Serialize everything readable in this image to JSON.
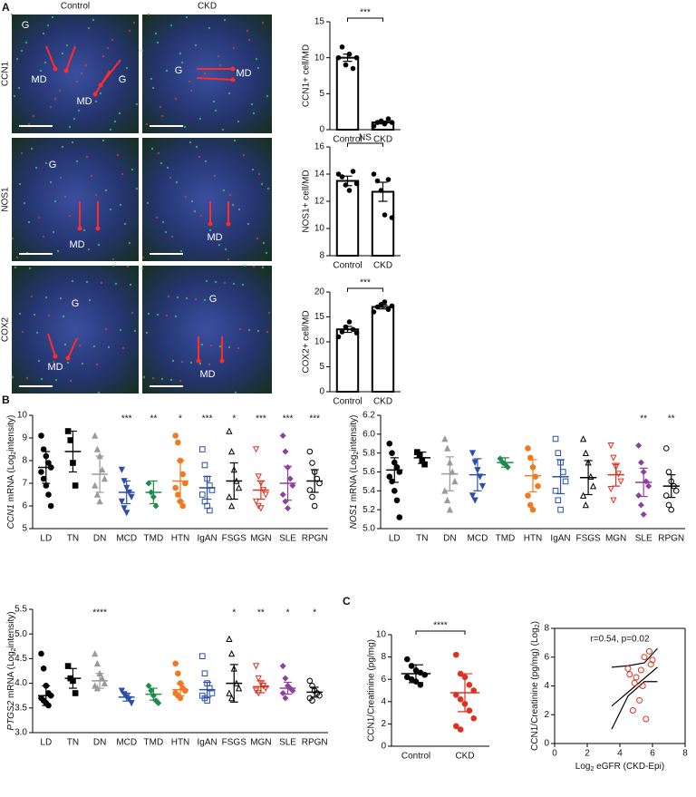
{
  "panel_labels": [
    "A",
    "B",
    "C"
  ],
  "micrographs": {
    "columns": [
      "Control",
      "CKD"
    ],
    "rows": [
      {
        "label": "CCN1",
        "labels": [
          [
            "G",
            "MD",
            "MD",
            "G"
          ],
          [
            "G",
            "MD"
          ]
        ]
      },
      {
        "label": "NOS1",
        "labels": [
          [
            "G",
            "MD"
          ],
          [
            "MD"
          ]
        ]
      },
      {
        "label": "COX2",
        "labels": [
          [
            "G",
            "MD"
          ],
          [
            "G",
            "MD"
          ]
        ]
      }
    ]
  },
  "chart_data": [
    {
      "type": "bar",
      "ylabel": "CCN1+ cell/MD",
      "categories": [
        "Control",
        "CKD"
      ],
      "values": [
        10,
        1
      ],
      "errors": [
        0.5,
        0.2
      ],
      "points": [
        [
          10,
          11.5,
          9,
          10.5,
          8.5,
          10
        ],
        [
          0.5,
          1,
          1.2,
          0.8,
          1.5,
          1
        ]
      ],
      "color": "#000000",
      "ylim": [
        0,
        15
      ],
      "yticks": [
        0,
        5,
        10,
        15
      ],
      "significance": "***"
    },
    {
      "type": "bar",
      "ylabel": "NOS1+ cell/MD",
      "categories": [
        "Control",
        "CKD"
      ],
      "values": [
        13.5,
        12.7
      ],
      "errors": [
        0.35,
        0.7
      ],
      "points": [
        [
          14,
          13.8,
          13.2,
          12.8,
          14.2,
          13.3
        ],
        [
          14,
          13.5,
          12.8,
          11,
          13.6,
          10.8
        ]
      ],
      "color": "#000000",
      "ylim": [
        8,
        16
      ],
      "yticks": [
        8,
        10,
        12,
        14,
        16
      ],
      "significance": "NS"
    },
    {
      "type": "bar",
      "ylabel": "COX2+ cell/MD",
      "categories": [
        "Control",
        "CKD"
      ],
      "values": [
        12.5,
        17
      ],
      "errors": [
        0.6,
        0.4
      ],
      "points": [
        [
          11,
          12,
          13,
          14,
          12.5,
          11.8
        ],
        [
          16,
          17,
          17.5,
          18,
          16.5,
          17.2
        ]
      ],
      "color": "#000000",
      "ylim": [
        0,
        20
      ],
      "yticks": [
        0,
        5,
        10,
        15,
        20
      ],
      "significance": "***"
    },
    {
      "type": "dotplot",
      "ylabel": [
        {
          "text": "CCN1",
          "italic": true
        },
        {
          "text": " mRNA (Log"
        },
        {
          "text": "2",
          "sub": true
        },
        {
          "text": "intensity)"
        }
      ],
      "categories": [
        "LD",
        "TN",
        "DN",
        "MCD",
        "TMD",
        "HTN",
        "IgAN",
        "FSGS",
        "MGN",
        "SLE",
        "RPGN"
      ],
      "colors": [
        "#000000",
        "#000000",
        "#9a9a9a",
        "#2a4fa8",
        "#1f8a4c",
        "#f07a22",
        "#2a4fa8",
        "#000000",
        "#e0301e",
        "#8e3fa0",
        "#000000"
      ],
      "markers": [
        "circle",
        "square",
        "triangle",
        "triangle-down",
        "diamond",
        "circle",
        "open-square",
        "open-triangle",
        "open-triangle-down",
        "diamond",
        "open-circle"
      ],
      "means": [
        7.7,
        8.4,
        7.4,
        6.6,
        6.6,
        7.1,
        6.8,
        7.1,
        6.7,
        7.0,
        7.1
      ],
      "errors": [
        0.7,
        0.9,
        0.8,
        0.5,
        0.5,
        0.9,
        0.5,
        0.8,
        0.4,
        0.75,
        0.5
      ],
      "points": [
        [
          9.1,
          8.5,
          8.2,
          7.9,
          7.7,
          7.5,
          7.2,
          6.9,
          6.5,
          6.0
        ],
        [
          9.3,
          8.9,
          7.9,
          6.9
        ],
        [
          9.1,
          8.5,
          8.2,
          7.6,
          7.2,
          6.9,
          6.5,
          6.2
        ],
        [
          7.6,
          7.1,
          6.8,
          6.6,
          6.4,
          6.2,
          5.9,
          5.7
        ],
        [
          7.0,
          6.6,
          6.4,
          6.0
        ],
        [
          9.1,
          8.8,
          8.0,
          7.4,
          7.0,
          6.8,
          6.5,
          6.2,
          6.0
        ],
        [
          8.5,
          7.8,
          7.2,
          6.9,
          6.7,
          6.5,
          6.2,
          6.0,
          5.8
        ],
        [
          9.3,
          8.4,
          7.6,
          7.1,
          6.8,
          6.4,
          6.0
        ],
        [
          8.5,
          7.3,
          7.0,
          6.7,
          6.5,
          6.2,
          6.0,
          5.9
        ],
        [
          9.1,
          8.4,
          7.7,
          7.2,
          6.9,
          6.5,
          6.2,
          5.9
        ],
        [
          8.4,
          7.9,
          7.5,
          7.2,
          7.0,
          6.7,
          6.4,
          6.0
        ]
      ],
      "significance": [
        null,
        null,
        null,
        "***",
        "**",
        "*",
        "***",
        "*",
        "***",
        "***",
        "***"
      ],
      "ylim": [
        5,
        10
      ],
      "yticks": [
        5,
        6,
        7,
        8,
        9,
        10
      ]
    },
    {
      "type": "dotplot",
      "ylabel": [
        {
          "text": "NOS1",
          "italic": true
        },
        {
          "text": " mRNA (Log"
        },
        {
          "text": "2",
          "sub": true
        },
        {
          "text": "intensity)"
        }
      ],
      "categories": [
        "LD",
        "TN",
        "DN",
        "MCD",
        "TMD",
        "HTN",
        "IgAN",
        "FSGS",
        "MGN",
        "SLE",
        "RPGN"
      ],
      "colors": [
        "#000000",
        "#000000",
        "#9a9a9a",
        "#2a4fa8",
        "#1f8a4c",
        "#f07a22",
        "#2a4fa8",
        "#000000",
        "#e0301e",
        "#8e3fa0",
        "#000000"
      ],
      "markers": [
        "circle",
        "square",
        "triangle",
        "triangle-down",
        "diamond",
        "circle",
        "open-square",
        "open-triangle",
        "open-triangle-down",
        "diamond",
        "open-circle"
      ],
      "means": [
        5.62,
        5.75,
        5.58,
        5.57,
        5.7,
        5.56,
        5.55,
        5.54,
        5.57,
        5.49,
        5.45
      ],
      "errors": [
        0.13,
        0.06,
        0.18,
        0.17,
        0.05,
        0.17,
        0.18,
        0.18,
        0.12,
        0.15,
        0.12
      ],
      "points": [
        [
          5.9,
          5.8,
          5.7,
          5.65,
          5.6,
          5.55,
          5.5,
          5.4,
          5.3,
          5.12
        ],
        [
          5.81,
          5.78,
          5.72,
          5.68
        ],
        [
          5.95,
          5.85,
          5.7,
          5.6,
          5.5,
          5.4,
          5.3,
          5.2
        ],
        [
          5.8,
          5.7,
          5.62,
          5.55,
          5.45,
          5.35,
          5.3
        ],
        [
          5.74,
          5.7,
          5.68,
          5.65
        ],
        [
          5.85,
          5.75,
          5.65,
          5.55,
          5.45,
          5.35,
          5.25,
          5.2
        ],
        [
          5.95,
          5.8,
          5.7,
          5.6,
          5.5,
          5.4,
          5.3,
          5.2
        ],
        [
          5.95,
          5.8,
          5.7,
          5.55,
          5.45,
          5.35,
          5.25
        ],
        [
          5.88,
          5.75,
          5.65,
          5.58,
          5.5,
          5.42,
          5.3
        ],
        [
          5.88,
          5.7,
          5.6,
          5.5,
          5.45,
          5.35,
          5.25,
          5.15
        ],
        [
          5.85,
          5.6,
          5.5,
          5.45,
          5.4,
          5.35,
          5.25,
          5.2
        ]
      ],
      "significance": [
        null,
        null,
        null,
        null,
        null,
        null,
        null,
        null,
        null,
        "**",
        "**"
      ],
      "ylim": [
        5,
        6.2
      ],
      "yticks": [
        {
          "value": 5,
          "label": "5.0"
        },
        5.2,
        5.4,
        5.6,
        5.8,
        {
          "value": 6,
          "label": "6.0"
        },
        6.2
      ]
    },
    {
      "type": "dotplot",
      "ylabel": [
        {
          "text": "PTGS2",
          "italic": true
        },
        {
          "text": " mRNA (Log"
        },
        {
          "text": "2",
          "sub": true
        },
        {
          "text": "intensity)"
        }
      ],
      "categories": [
        "LD",
        "TN",
        "DN",
        "MCD",
        "TMD",
        "HTN",
        "IgAN",
        "FSGS",
        "MGN",
        "SLE",
        "RPGN"
      ],
      "colors": [
        "#000000",
        "#000000",
        "#9a9a9a",
        "#2a4fa8",
        "#1f8a4c",
        "#f07a22",
        "#2a4fa8",
        "#000000",
        "#e0301e",
        "#8e3fa0",
        "#000000"
      ],
      "markers": [
        "circle",
        "square",
        "triangle",
        "triangle-down",
        "diamond",
        "circle",
        "open-square",
        "open-triangle",
        "open-triangle-down",
        "diamond",
        "open-circle"
      ],
      "means": [
        3.75,
        4.1,
        4.05,
        3.72,
        3.78,
        3.87,
        3.87,
        4.0,
        3.93,
        3.9,
        3.82
      ],
      "errors": [
        0.2,
        0.2,
        0.15,
        0.08,
        0.12,
        0.12,
        0.15,
        0.38,
        0.12,
        0.12,
        0.1
      ],
      "points": [
        [
          4.6,
          4.3,
          3.95,
          3.8,
          3.75,
          3.7,
          3.65,
          3.6,
          3.55
        ],
        [
          4.35,
          4.1,
          4.05,
          3.8
        ],
        [
          4.6,
          4.4,
          4.2,
          4.1,
          4.0,
          3.95,
          3.9
        ],
        [
          3.85,
          3.78,
          3.72,
          3.68,
          3.6
        ],
        [
          3.95,
          3.85,
          3.75,
          3.65,
          3.6
        ],
        [
          4.4,
          4.2,
          4.0,
          3.9,
          3.85,
          3.8,
          3.75,
          3.7
        ],
        [
          4.55,
          4.2,
          4.0,
          3.9,
          3.8,
          3.75,
          3.7,
          3.65
        ],
        [
          4.9,
          4.6,
          4.3,
          4.0,
          3.9,
          3.8,
          3.7
        ],
        [
          4.35,
          4.1,
          4.0,
          3.95,
          3.9,
          3.85,
          3.8
        ],
        [
          4.35,
          4.1,
          3.95,
          3.9,
          3.85,
          3.8,
          3.7
        ],
        [
          4.05,
          3.95,
          3.85,
          3.8,
          3.75,
          3.7,
          3.65
        ]
      ],
      "significance": [
        null,
        null,
        "****",
        null,
        null,
        null,
        null,
        "*",
        "**",
        "*",
        "*"
      ],
      "ylim": [
        3,
        5.5
      ],
      "yticks": [
        {
          "value": 3,
          "label": "3.0"
        },
        3.5,
        {
          "value": 4,
          "label": "4.0"
        },
        4.5,
        {
          "value": 5,
          "label": "5.0"
        },
        5.5
      ]
    },
    {
      "type": "dotplot",
      "ylabel": "CCN1/Creatinine (pg/mg)",
      "categories": [
        "Control",
        "CKD"
      ],
      "colors": [
        "#000000",
        "#e0301e"
      ],
      "markers": [
        "circle",
        "circle"
      ],
      "means": [
        6.5,
        4.8
      ],
      "errors": [
        0.8,
        1.7
      ],
      "points": [
        [
          7.8,
          7.2,
          6.8,
          6.6,
          6.4,
          6.2,
          6.0,
          5.8,
          5.5
        ],
        [
          8.2,
          6.5,
          6.2,
          5.5,
          5.0,
          4.6,
          4.2,
          3.8,
          3.2,
          2.5,
          1.8,
          1.5
        ]
      ],
      "significance": "****",
      "ylim": [
        0,
        10
      ],
      "yticks": [
        0,
        2,
        4,
        6,
        8,
        10
      ]
    },
    {
      "type": "scatter",
      "annotation": "r=0.54, p=0.02",
      "ylabel": [
        {
          "text": "CCN1/Creatinine (pg/mg) (Log"
        },
        {
          "text": "2",
          "sub": true
        },
        {
          "text": ")"
        }
      ],
      "xlabel": [
        {
          "text": "Log"
        },
        {
          "text": "2",
          "sub": true
        },
        {
          "text": " eGFR (CKD-Epi)"
        }
      ],
      "points": {
        "color": "#e0301e",
        "x": [
          4.5,
          4.9,
          5.2,
          5.5,
          5.8,
          6.0,
          5.3,
          4.8,
          5.6,
          5.9,
          5.0,
          4.6,
          5.4
        ],
        "y": [
          5.2,
          4.2,
          3.0,
          6.0,
          6.4,
          5.8,
          5.1,
          2.3,
          1.7,
          5.5,
          4.6,
          4.8,
          4.0
        ]
      },
      "fit_lines": [
        {
          "x": [
            3.5,
            6.3
          ],
          "y": [
            2.6,
            5.3
          ]
        },
        {
          "x": [
            3.5,
            4.5,
            5.5,
            6.3
          ],
          "y": [
            5.3,
            5.4,
            5.6,
            6.6
          ]
        },
        {
          "x": [
            3.5,
            4.5,
            5.5,
            6.3
          ],
          "y": [
            1.0,
            3.3,
            4.3,
            4.3
          ]
        }
      ],
      "xlim": [
        0,
        8
      ],
      "xticks": [
        0,
        2,
        4,
        6,
        8
      ],
      "ylim": [
        0,
        8
      ],
      "yticks": [
        0,
        2,
        4,
        6,
        8
      ]
    }
  ]
}
